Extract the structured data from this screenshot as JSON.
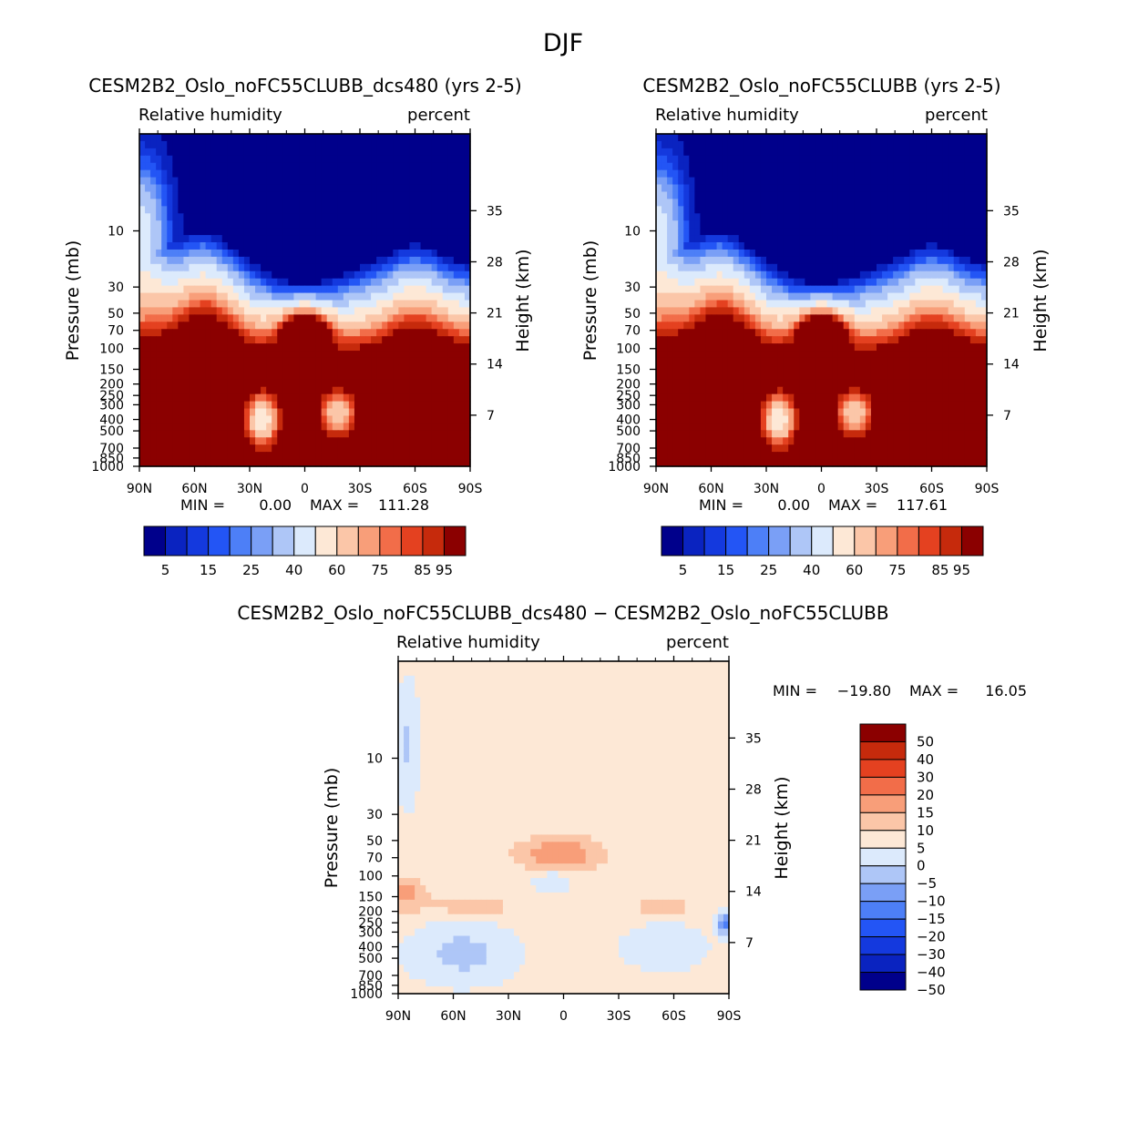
{
  "page_title": "DJF",
  "colors": {
    "rh_palette": [
      "#00008b",
      "#0a23c0",
      "#1439de",
      "#2355f5",
      "#4d7ff7",
      "#7a9ff6",
      "#aec6f7",
      "#dceafc",
      "#fde8d6",
      "#fbc6a8",
      "#f89e79",
      "#f26d49",
      "#e44120",
      "#c62a0c",
      "#8b0000"
    ],
    "diff_palette": [
      "#00008b",
      "#0a23c0",
      "#1439de",
      "#2355f5",
      "#4d7ff7",
      "#7a9ff6",
      "#aec6f7",
      "#dceafc",
      "#fde8d6",
      "#fbc6a8",
      "#f89e79",
      "#f26d49",
      "#e44120",
      "#c62a0c",
      "#8b0000"
    ]
  },
  "chart_data": [
    {
      "type": "heatmap",
      "title": "CESM2B2_Oslo_noFC55CLUBB_dcs480 (yrs 2-5)",
      "subtitle_left": "Relative humidity",
      "subtitle_right": "percent",
      "ylabel": "Pressure (mb)",
      "ylabel_right": "Height (km)",
      "x_ticks": [
        "90N",
        "60N",
        "30N",
        "0",
        "30S",
        "60S",
        "90S"
      ],
      "y_ticks": [
        "10",
        "30",
        "50",
        "70",
        "100",
        "150",
        "200",
        "250",
        "300",
        "400",
        "500",
        "700",
        "850",
        "1000"
      ],
      "y_ticks_right": [
        "35",
        "28",
        "21",
        "14",
        "7"
      ],
      "stats": {
        "min_label": "MIN =",
        "min": "0.00",
        "max_label": "MAX =",
        "max": "111.28"
      },
      "colorbar_labels": [
        "5",
        "15",
        "25",
        "40",
        "60",
        "75",
        "85",
        "95"
      ],
      "levels": [
        5,
        10,
        15,
        20,
        25,
        30,
        40,
        50,
        60,
        70,
        75,
        80,
        85,
        90,
        95
      ]
    },
    {
      "type": "heatmap",
      "title": "CESM2B2_Oslo_noFC55CLUBB (yrs 2-5)",
      "subtitle_left": "Relative humidity",
      "subtitle_right": "percent",
      "ylabel": "Pressure (mb)",
      "ylabel_right": "Height (km)",
      "x_ticks": [
        "90N",
        "60N",
        "30N",
        "0",
        "30S",
        "60S",
        "90S"
      ],
      "y_ticks": [
        "10",
        "30",
        "50",
        "70",
        "100",
        "150",
        "200",
        "250",
        "300",
        "400",
        "500",
        "700",
        "850",
        "1000"
      ],
      "y_ticks_right": [
        "35",
        "28",
        "21",
        "14",
        "7"
      ],
      "stats": {
        "min_label": "MIN =",
        "min": "0.00",
        "max_label": "MAX =",
        "max": "117.61"
      },
      "colorbar_labels": [
        "5",
        "15",
        "25",
        "40",
        "60",
        "75",
        "85",
        "95"
      ],
      "levels": [
        5,
        10,
        15,
        20,
        25,
        30,
        40,
        50,
        60,
        70,
        75,
        80,
        85,
        90,
        95
      ]
    },
    {
      "type": "heatmap",
      "title": "CESM2B2_Oslo_noFC55CLUBB_dcs480 − CESM2B2_Oslo_noFC55CLUBB",
      "subtitle_left": "Relative humidity",
      "subtitle_right": "percent",
      "ylabel": "Pressure (mb)",
      "ylabel_right": "Height (km)",
      "x_ticks": [
        "90N",
        "60N",
        "30N",
        "0",
        "30S",
        "60S",
        "90S"
      ],
      "y_ticks": [
        "10",
        "30",
        "50",
        "70",
        "100",
        "150",
        "200",
        "250",
        "300",
        "400",
        "500",
        "700",
        "850",
        "1000"
      ],
      "y_ticks_right": [
        "35",
        "28",
        "21",
        "14",
        "7"
      ],
      "stats": {
        "min_label": "MIN =",
        "min": "−19.80",
        "max_label": "MAX =",
        "max": "16.05"
      },
      "colorbar_labels": [
        "50",
        "40",
        "30",
        "20",
        "15",
        "10",
        "5",
        "0",
        "−5",
        "−10",
        "−15",
        "−20",
        "−30",
        "−40",
        "−50"
      ],
      "levels": [
        -50,
        -40,
        -30,
        -20,
        -15,
        -10,
        -5,
        0,
        5,
        10,
        15,
        20,
        30,
        40,
        50
      ]
    }
  ]
}
